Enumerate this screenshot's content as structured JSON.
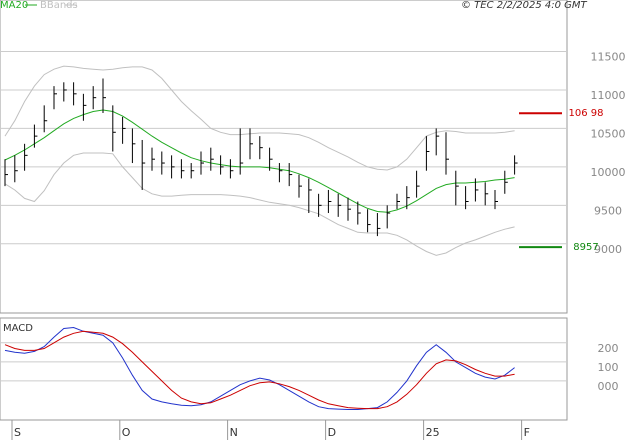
{
  "chart_data": [
    {
      "type": "ohlc",
      "annotation": "© TEC 2/2/2025 4:0 GMT",
      "close": [
        9900,
        9950,
        10150,
        10400,
        10600,
        10950,
        11000,
        10950,
        10800,
        10900,
        10900,
        10450,
        10500,
        10300,
        10050,
        10100,
        10050,
        10000,
        9950,
        9950,
        10050,
        10100,
        10000,
        9950,
        10050,
        10300,
        10250,
        10100,
        9950,
        9900,
        9750,
        9700,
        9500,
        9550,
        9500,
        9450,
        9400,
        9250,
        9200,
        9400,
        9550,
        9600,
        9750,
        10200,
        10400,
        10100,
        9750,
        9550,
        9700,
        9650,
        9550,
        9800,
        10050
      ],
      "high": [
        10100,
        10150,
        10300,
        10550,
        10800,
        11050,
        11100,
        11100,
        10950,
        11050,
        11150,
        10800,
        10650,
        10500,
        10350,
        10250,
        10200,
        10150,
        10100,
        10050,
        10200,
        10250,
        10150,
        10100,
        10500,
        10500,
        10400,
        10250,
        10050,
        10050,
        9900,
        9850,
        9650,
        9700,
        9650,
        9600,
        9550,
        9450,
        9400,
        9500,
        9650,
        9750,
        9950,
        10400,
        10500,
        10450,
        9950,
        9750,
        9850,
        9800,
        9700,
        9950,
        10150
      ],
      "low": [
        9750,
        9800,
        9950,
        10250,
        10450,
        10750,
        10850,
        10800,
        10600,
        10750,
        10700,
        10200,
        10300,
        10050,
        9700,
        9950,
        9900,
        9850,
        9850,
        9850,
        9900,
        9950,
        9900,
        9850,
        9900,
        10100,
        10100,
        9950,
        9800,
        9750,
        9600,
        9400,
        9350,
        9400,
        9350,
        9300,
        9250,
        9150,
        9100,
        9200,
        9450,
        9450,
        9600,
        9950,
        10150,
        9900,
        9500,
        9450,
        9550,
        9500,
        9450,
        9650,
        9900
      ],
      "series": [
        {
          "name": "MA20",
          "color": "#22aa22",
          "values": [
            10090,
            10150,
            10220,
            10300,
            10380,
            10470,
            10560,
            10630,
            10680,
            10720,
            10740,
            10720,
            10660,
            10580,
            10490,
            10400,
            10320,
            10250,
            10180,
            10120,
            10080,
            10050,
            10030,
            10010,
            10000,
            10000,
            10000,
            9990,
            9970,
            9950,
            9910,
            9860,
            9800,
            9730,
            9660,
            9590,
            9520,
            9460,
            9420,
            9410,
            9440,
            9490,
            9560,
            9640,
            9720,
            9770,
            9790,
            9790,
            9800,
            9810,
            9830,
            9840,
            9860
          ]
        },
        {
          "name": "BBands",
          "color": "#c0c0c0",
          "upper": [
            10400,
            10600,
            10850,
            11050,
            11200,
            11270,
            11310,
            11300,
            11280,
            11270,
            11260,
            11270,
            11290,
            11300,
            11300,
            11260,
            11150,
            11000,
            10850,
            10730,
            10620,
            10500,
            10450,
            10420,
            10420,
            10430,
            10440,
            10440,
            10440,
            10430,
            10420,
            10380,
            10320,
            10250,
            10190,
            10130,
            10060,
            10000,
            9970,
            9960,
            10000,
            10100,
            10250,
            10400,
            10450,
            10470,
            10460,
            10440,
            10440,
            10440,
            10440,
            10450,
            10470
          ],
          "lower": [
            9780,
            9700,
            9590,
            9550,
            9690,
            9900,
            10050,
            10150,
            10180,
            10180,
            10180,
            10170,
            10000,
            9860,
            9720,
            9650,
            9620,
            9620,
            9630,
            9640,
            9640,
            9640,
            9640,
            9630,
            9620,
            9600,
            9570,
            9540,
            9520,
            9500,
            9470,
            9430,
            9390,
            9320,
            9250,
            9200,
            9150,
            9140,
            9140,
            9140,
            9110,
            9050,
            8970,
            8900,
            8850,
            8880,
            8950,
            9010,
            9050,
            9100,
            9150,
            9190,
            9220
          ]
        }
      ],
      "levels": [
        {
          "value": 10698,
          "label": "106 98",
          "color": "#cc0000"
        },
        {
          "value": 8957,
          "label": "8957",
          "color": "#118811"
        }
      ],
      "ylim": [
        8100,
        12170
      ],
      "yticks": [
        9000,
        9500,
        10000,
        10500,
        11000,
        11500
      ],
      "grid": true
    },
    {
      "type": "line",
      "title": "MACD",
      "categories": [
        "S",
        null,
        null,
        null,
        null,
        null,
        null,
        null,
        null,
        null,
        null,
        "O",
        null,
        null,
        null,
        null,
        null,
        null,
        null,
        null,
        null,
        null,
        "N",
        null,
        null,
        null,
        null,
        null,
        null,
        null,
        null,
        null,
        "D",
        null,
        null,
        null,
        null,
        null,
        null,
        null,
        null,
        null,
        "25",
        null,
        null,
        null,
        null,
        null,
        null,
        null,
        null,
        null,
        "F"
      ],
      "series": [
        {
          "color": "#2233cc",
          "values": [
            160,
            150,
            145,
            155,
            180,
            230,
            275,
            280,
            260,
            250,
            240,
            200,
            120,
            30,
            -50,
            -95,
            -110,
            -120,
            -128,
            -130,
            -125,
            -110,
            -80,
            -50,
            -20,
            0,
            15,
            5,
            -20,
            -50,
            -80,
            -110,
            -135,
            -145,
            -148,
            -150,
            -150,
            -145,
            -140,
            -110,
            -60,
            0,
            80,
            150,
            190,
            150,
            100,
            70,
            40,
            20,
            10,
            30,
            70
          ]
        },
        {
          "color": "#cc0000",
          "values": [
            190,
            170,
            160,
            160,
            170,
            200,
            230,
            250,
            260,
            255,
            250,
            230,
            195,
            150,
            100,
            50,
            0,
            -50,
            -90,
            -110,
            -120,
            -115,
            -95,
            -75,
            -50,
            -25,
            -10,
            -5,
            -15,
            -30,
            -50,
            -75,
            -100,
            -120,
            -130,
            -140,
            -143,
            -145,
            -145,
            -135,
            -110,
            -70,
            -20,
            40,
            90,
            110,
            105,
            85,
            60,
            40,
            25,
            25,
            35
          ]
        }
      ],
      "ylim": [
        -205,
        330
      ],
      "yticks": [
        {
          "value": 0,
          "label": "000"
        },
        100,
        200
      ],
      "grid": true
    }
  ]
}
